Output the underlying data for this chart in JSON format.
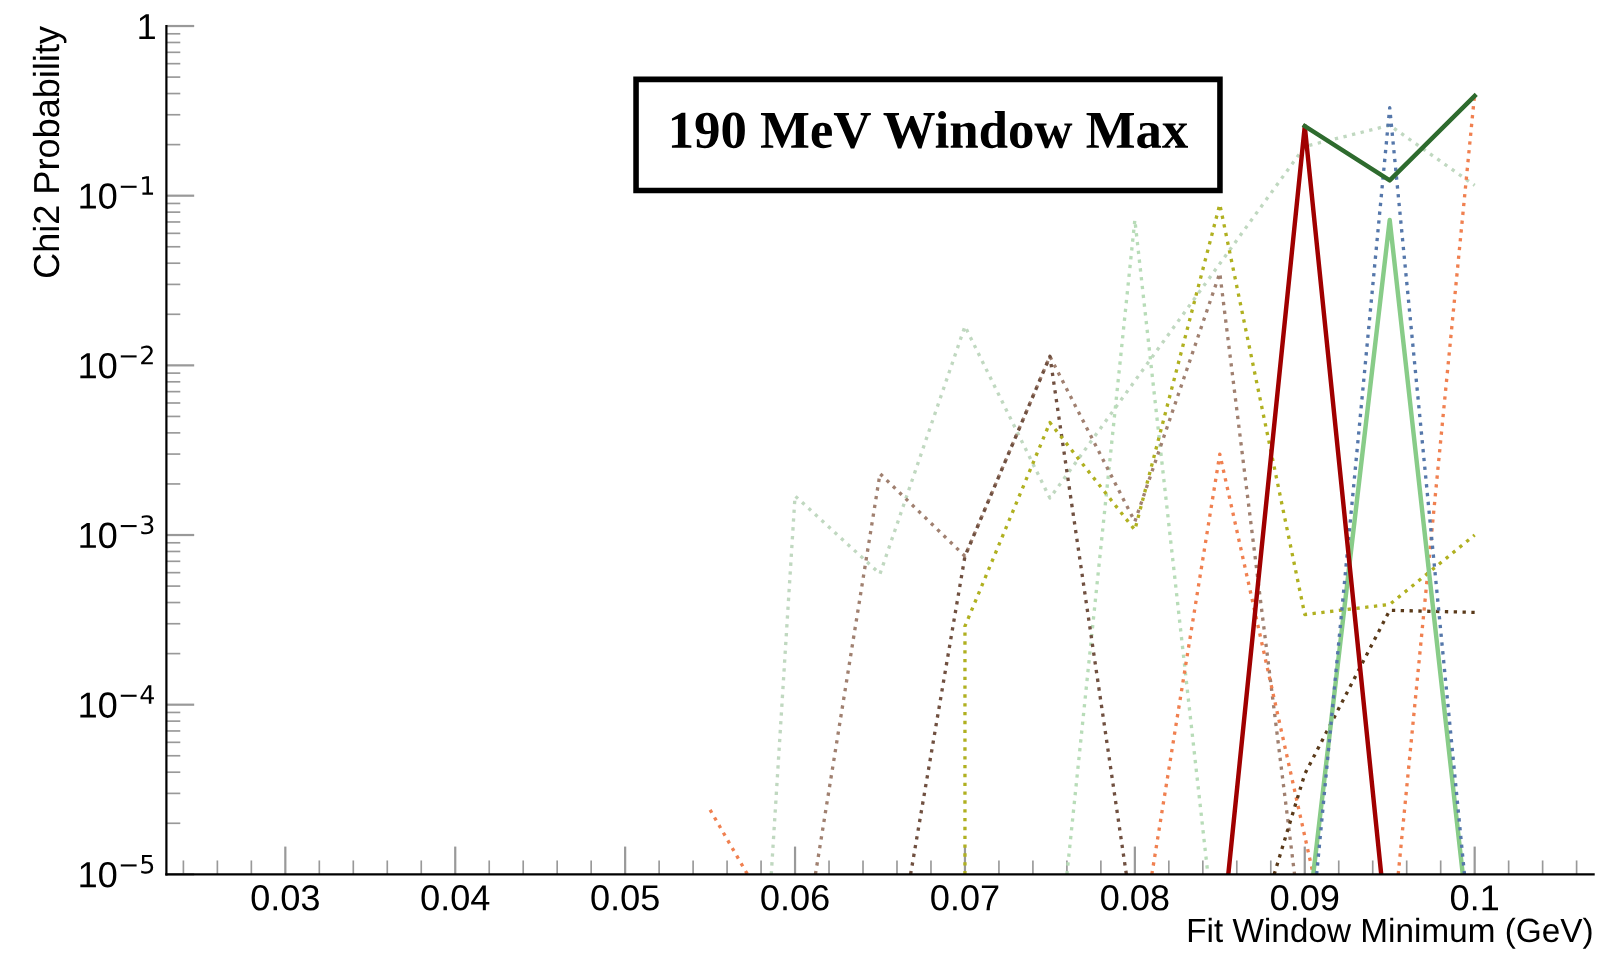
{
  "chart_data": {
    "type": "line",
    "title": "190 MeV Window Max",
    "xlabel": "Fit Window Minimum (GeV)",
    "ylabel": "Chi2 Probability",
    "log": "y",
    "xlim": [
      0.023,
      0.107
    ],
    "xticks": [
      0.03,
      0.04,
      0.05,
      0.06,
      0.07,
      0.08,
      0.09,
      0.1
    ],
    "ylim": [
      1e-05,
      1
    ],
    "yticks": [
      {
        "value": 1e-05,
        "label": "10$^{−5}$"
      },
      {
        "value": 0.0001,
        "label": "10$^{−4}$"
      },
      {
        "value": 0.001,
        "label": "10$^{−3}$"
      },
      {
        "value": 0.01,
        "label": "10$^{−2}$"
      },
      {
        "value": 0.1,
        "label": "10$^{−1}$"
      },
      1
    ],
    "grid": false,
    "marker": "none",
    "series": [
      {
        "color": "#c0d8c0",
        "line_style": "dotted",
        "x": [
          0.0586,
          0.06,
          0.065,
          0.07,
          0.075,
          0.09,
          0.095,
          0.1
        ],
        "values": [
          1e-05,
          0.0017,
          0.00059,
          0.017,
          0.00165,
          0.195,
          0.26,
          0.115
        ]
      },
      {
        "color": "#b8dcb8",
        "line_style": "dotted",
        "x": [
          0.076,
          0.08,
          0.0843
        ],
        "values": [
          1e-05,
          0.072,
          1e-05
        ]
      },
      {
        "color": "#a08070",
        "line_style": "dotted",
        "x": [
          0.0612,
          0.065,
          0.07,
          0.075,
          0.08,
          0.085,
          0.0894
        ],
        "values": [
          1e-05,
          0.0023,
          0.00075,
          0.0113,
          0.0012,
          0.035,
          1e-05
        ]
      },
      {
        "color": "#705040",
        "line_style": "dotted",
        "x": [
          0.0668,
          0.07,
          0.075,
          0.0795
        ],
        "values": [
          1e-05,
          0.00075,
          0.0113,
          1e-05
        ]
      },
      {
        "color": "#f08050",
        "line_style": "dotted",
        "x": [
          0.055,
          0.0572,
          0.07,
          0.081,
          0.085,
          0.0905,
          0.093,
          0.0955,
          0.1
        ],
        "values": [
          2.4e-05,
          1e-05,
          null,
          1e-05,
          0.003,
          1e-05,
          null,
          1e-05,
          0.4
        ]
      },
      {
        "color": "#b0b020",
        "line_style": "dotted",
        "x": [
          0.07,
          0.07,
          0.075,
          0.08,
          0.085,
          0.09,
          0.095,
          0.1
        ],
        "values": [
          1e-05,
          0.00029,
          0.0046,
          0.00107,
          0.089,
          0.00034,
          0.00039,
          0.001
        ]
      },
      {
        "color": "#5a3a1a",
        "line_style": "dotted",
        "x": [
          0.0882,
          0.09,
          0.095,
          0.1
        ],
        "values": [
          1e-05,
          3.9e-05,
          0.00036,
          0.00035
        ]
      },
      {
        "color": "#88cc88",
        "line_style": "solid",
        "x": [
          0.0905,
          0.095,
          0.0993
        ],
        "values": [
          1e-05,
          0.072,
          1e-05
        ]
      },
      {
        "color": "#5577aa",
        "line_style": "dotted",
        "x": [
          0.0907,
          0.095,
          0.0994
        ],
        "values": [
          1e-05,
          0.33,
          1e-05
        ]
      },
      {
        "color": "#a00000",
        "line_style": "solid",
        "x": [
          0.0855,
          0.09,
          0.0945
        ],
        "values": [
          1e-05,
          0.257,
          1e-05
        ]
      },
      {
        "color": "#2e6b2e",
        "line_style": "solid",
        "x": [
          0.09,
          0.095,
          0.1
        ],
        "values": [
          0.257,
          0.123,
          0.387
        ]
      }
    ]
  }
}
